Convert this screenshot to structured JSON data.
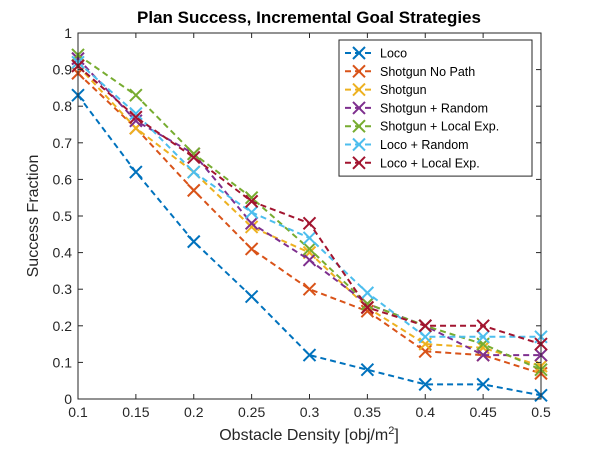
{
  "chart_data": {
    "type": "line",
    "title": "Plan Success, Incremental Goal Strategies",
    "xlabel": "Obstacle Density [obj/m",
    "xlabel_sup": "2",
    "xlabel_end": "]",
    "ylabel": "Success Fraction",
    "x": [
      0.1,
      0.15,
      0.2,
      0.25,
      0.3,
      0.35,
      0.4,
      0.45,
      0.5
    ],
    "x_tick_labels": [
      "0.1",
      "0.15",
      "0.2",
      "0.25",
      "0.3",
      "0.35",
      "0.4",
      "0.45",
      "0.5"
    ],
    "xlim": [
      0.1,
      0.5
    ],
    "ylim": [
      0,
      1
    ],
    "y_ticks": [
      0,
      0.1,
      0.2,
      0.3,
      0.4,
      0.5,
      0.6,
      0.7,
      0.8,
      0.9,
      1
    ],
    "y_tick_labels": [
      "0",
      "0.1",
      "0.2",
      "0.3",
      "0.4",
      "0.5",
      "0.6",
      "0.7",
      "0.8",
      "0.9",
      "1"
    ],
    "grid": false,
    "legend_position": "top-right",
    "line_style": "dashed",
    "marker": "x",
    "series": [
      {
        "name": "Loco",
        "color": "#0072BD",
        "values": [
          0.83,
          0.62,
          0.43,
          0.28,
          0.12,
          0.08,
          0.04,
          0.04,
          0.01
        ]
      },
      {
        "name": "Shotgun No Path",
        "color": "#D95319",
        "values": [
          0.89,
          0.74,
          0.57,
          0.41,
          0.3,
          0.24,
          0.13,
          0.12,
          0.07
        ]
      },
      {
        "name": "Shotgun",
        "color": "#EDB120",
        "values": [
          0.91,
          0.74,
          0.62,
          0.47,
          0.4,
          0.25,
          0.15,
          0.14,
          0.09
        ]
      },
      {
        "name": "Shotgun + Random",
        "color": "#7E2F8E",
        "values": [
          0.93,
          0.76,
          0.67,
          0.48,
          0.38,
          0.26,
          0.2,
          0.12,
          0.12
        ]
      },
      {
        "name": "Shotgun + Local Exp.",
        "color": "#77AC30",
        "values": [
          0.94,
          0.83,
          0.67,
          0.55,
          0.41,
          0.26,
          0.2,
          0.15,
          0.08
        ]
      },
      {
        "name": "Loco + Random",
        "color": "#4DBEEE",
        "values": [
          0.92,
          0.78,
          0.62,
          0.51,
          0.44,
          0.29,
          0.17,
          0.17,
          0.17
        ]
      },
      {
        "name": "Loco + Local Exp.",
        "color": "#A2142F",
        "values": [
          0.91,
          0.77,
          0.66,
          0.54,
          0.48,
          0.25,
          0.2,
          0.2,
          0.15
        ]
      }
    ]
  }
}
